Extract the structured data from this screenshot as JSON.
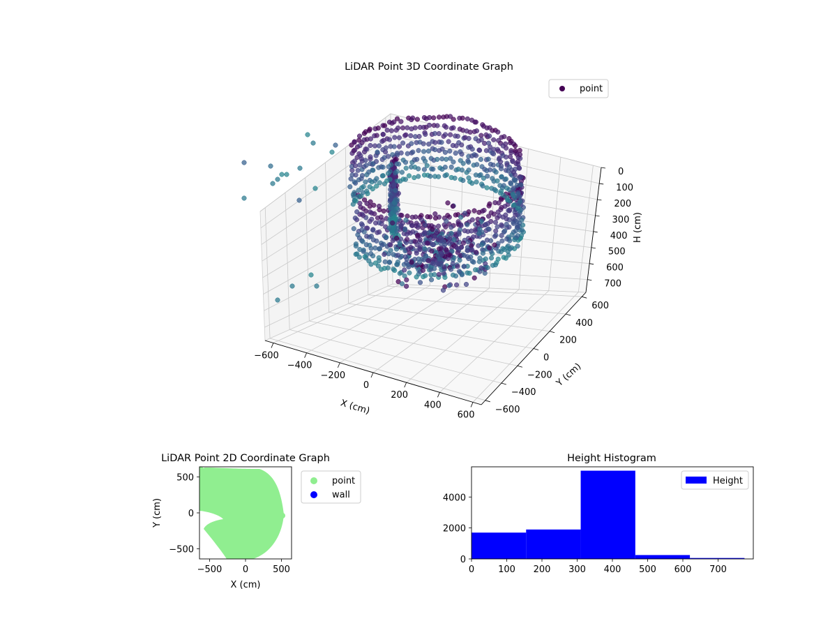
{
  "chart_data": [
    {
      "type": "scatter",
      "projection": "3d",
      "title": "LiDAR Point 3D Coordinate Graph",
      "xlabel": "X (cm)",
      "ylabel": "Y (cm)",
      "zlabel": "H (cm)",
      "xticks": [
        "−600",
        "−400",
        "−200",
        "0",
        "200",
        "400",
        "600"
      ],
      "yticks": [
        "−600",
        "−400",
        "−200",
        "0",
        "200",
        "400",
        "600"
      ],
      "zticks": [
        "0",
        "100",
        "200",
        "300",
        "400",
        "500",
        "600",
        "700"
      ],
      "xlim": [
        -650,
        650
      ],
      "ylim": [
        -650,
        650
      ],
      "zlim": [
        0,
        780
      ],
      "z_axis_inverted": true,
      "grid": true,
      "colormap": "viridis",
      "legend": {
        "entries": [
          "point"
        ],
        "placement": "upper right"
      },
      "series": [
        {
          "name": "point",
          "color": "#440154",
          "description": "dense ring-shaped point cloud forming curved walls around the sensor, plus sparse outliers"
        }
      ]
    },
    {
      "type": "scatter",
      "title": "LiDAR Point 2D Coordinate Graph",
      "xlabel": "X (cm)",
      "ylabel": "Y (cm)",
      "xticks": [
        "−500",
        "0",
        "500"
      ],
      "yticks": [
        "−500",
        "0",
        "500"
      ],
      "xlim": [
        -640,
        640
      ],
      "ylim": [
        -640,
        640
      ],
      "legend": {
        "entries": [
          "point",
          "wall"
        ],
        "placement": "outside right"
      },
      "series": [
        {
          "name": "point",
          "color": "#90ee90"
        },
        {
          "name": "wall",
          "color": "#0000ff"
        }
      ]
    },
    {
      "type": "bar",
      "title": "Height Histogram",
      "xticks": [
        "0",
        "100",
        "200",
        "300",
        "400",
        "500",
        "600",
        "700"
      ],
      "yticks": [
        "0",
        "2000",
        "4000"
      ],
      "xlim": [
        0,
        800
      ],
      "ylim": [
        0,
        5950
      ],
      "legend": {
        "entries": [
          "Height"
        ],
        "placement": "upper right"
      },
      "series": [
        {
          "name": "Height",
          "color": "#0000ff",
          "bins": [
            {
              "from": 0,
              "to": 155,
              "count": 1700
            },
            {
              "from": 155,
              "to": 310,
              "count": 1900
            },
            {
              "from": 310,
              "to": 465,
              "count": 5700
            },
            {
              "from": 465,
              "to": 620,
              "count": 250
            },
            {
              "from": 620,
              "to": 775,
              "count": 60
            }
          ]
        }
      ]
    }
  ]
}
